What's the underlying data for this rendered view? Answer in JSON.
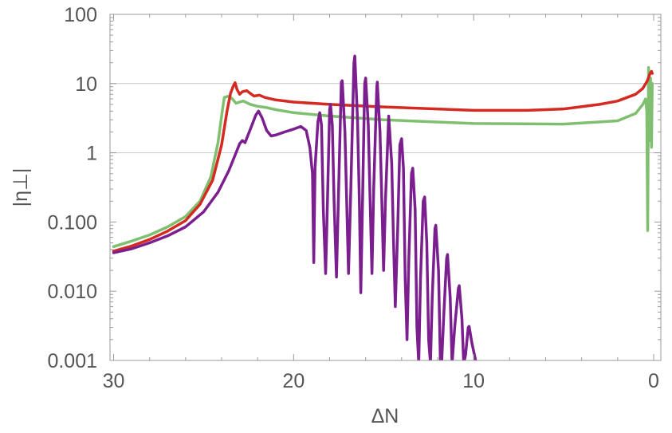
{
  "chart_data": {
    "type": "line",
    "xlabel": "ΔN",
    "ylabel": "|η⊥|",
    "xlim": [
      30.2,
      -0.4
    ],
    "ylim": [
      0.001,
      100
    ],
    "y_scale": "log",
    "x_axis_reversed": true,
    "x_ticks": [
      {
        "value": 30,
        "label": "30"
      },
      {
        "value": 20,
        "label": "20"
      },
      {
        "value": 10,
        "label": "10"
      },
      {
        "value": 0,
        "label": "0"
      }
    ],
    "y_ticks": [
      {
        "value": 100,
        "label": "100"
      },
      {
        "value": 10,
        "label": "10"
      },
      {
        "value": 1,
        "label": "1"
      },
      {
        "value": 0.1,
        "label": "0.100"
      },
      {
        "value": 0.01,
        "label": "0.010"
      },
      {
        "value": 0.001,
        "label": "0.001"
      }
    ],
    "gridlines_y": [
      10,
      1
    ],
    "legend": "none",
    "series": [
      {
        "color": "#7fbf6f",
        "points": [
          [
            30,
            0.044
          ],
          [
            29,
            0.053
          ],
          [
            28,
            0.065
          ],
          [
            27,
            0.085
          ],
          [
            26,
            0.12
          ],
          [
            25.2,
            0.2
          ],
          [
            24.6,
            0.45
          ],
          [
            24.2,
            1.4
          ],
          [
            23.95,
            4.2
          ],
          [
            23.85,
            6.3
          ],
          [
            23.6,
            6.6
          ],
          [
            23.4,
            6.0
          ],
          [
            23.2,
            5.2
          ],
          [
            23.0,
            5.4
          ],
          [
            22.8,
            5.6
          ],
          [
            22.4,
            5.0
          ],
          [
            22.0,
            4.7
          ],
          [
            21.5,
            4.5
          ],
          [
            21.0,
            4.2
          ],
          [
            20.0,
            3.8
          ],
          [
            18.0,
            3.4
          ],
          [
            15.0,
            3.0
          ],
          [
            10.0,
            2.65
          ],
          [
            5.0,
            2.6
          ],
          [
            2.0,
            2.9
          ],
          [
            1.0,
            3.7
          ],
          [
            0.6,
            5.0
          ],
          [
            0.45,
            6.0
          ],
          [
            0.38,
            4.0
          ],
          [
            0.33,
            0.075
          ],
          [
            0.28,
            17.0
          ],
          [
            0.22,
            1.5
          ],
          [
            0.17,
            12.0
          ],
          [
            0.12,
            1.2
          ],
          [
            0.08,
            10.0
          ]
        ]
      },
      {
        "color": "#d42a22",
        "points": [
          [
            30,
            0.038
          ],
          [
            29,
            0.045
          ],
          [
            28,
            0.056
          ],
          [
            27,
            0.074
          ],
          [
            26,
            0.105
          ],
          [
            25.2,
            0.18
          ],
          [
            24.5,
            0.4
          ],
          [
            24.0,
            1.3
          ],
          [
            23.7,
            4.0
          ],
          [
            23.5,
            7.3
          ],
          [
            23.35,
            9.2
          ],
          [
            23.25,
            10.3
          ],
          [
            23.15,
            8.3
          ],
          [
            23.0,
            7.0
          ],
          [
            22.85,
            7.6
          ],
          [
            22.6,
            7.9
          ],
          [
            22.4,
            7.2
          ],
          [
            22.2,
            6.6
          ],
          [
            21.9,
            6.8
          ],
          [
            21.6,
            6.3
          ],
          [
            21.0,
            5.8
          ],
          [
            20.0,
            5.4
          ],
          [
            18.0,
            5.0
          ],
          [
            15.0,
            4.6
          ],
          [
            10.0,
            4.1
          ],
          [
            7.0,
            4.1
          ],
          [
            5.0,
            4.3
          ],
          [
            3.0,
            5.0
          ],
          [
            2.0,
            5.6
          ],
          [
            1.0,
            7.0
          ],
          [
            0.6,
            8.5
          ],
          [
            0.35,
            11.0
          ],
          [
            0.2,
            14.0
          ],
          [
            0.12,
            15.0
          ],
          [
            0.08,
            14.0
          ]
        ]
      },
      {
        "color": "#7b1f8f",
        "points": [
          [
            30,
            0.036
          ],
          [
            29,
            0.041
          ],
          [
            28,
            0.05
          ],
          [
            27,
            0.063
          ],
          [
            26,
            0.085
          ],
          [
            25,
            0.14
          ],
          [
            24.2,
            0.27
          ],
          [
            23.6,
            0.55
          ],
          [
            23.2,
            1.0
          ],
          [
            23.0,
            1.35
          ],
          [
            22.85,
            1.5
          ],
          [
            22.7,
            1.4
          ],
          [
            22.4,
            2.2
          ],
          [
            22.1,
            3.5
          ],
          [
            21.95,
            4.0
          ],
          [
            21.75,
            3.2
          ],
          [
            21.5,
            2.1
          ],
          [
            21.25,
            1.75
          ],
          [
            21.0,
            1.8
          ],
          [
            20.5,
            2.0
          ],
          [
            20.0,
            2.2
          ],
          [
            19.6,
            2.4
          ],
          [
            19.3,
            2.1
          ],
          [
            19.1,
            1.2
          ],
          [
            18.95,
            0.5
          ],
          [
            18.88,
            0.026
          ],
          [
            18.81,
            0.6
          ],
          [
            18.65,
            2.8
          ],
          [
            18.55,
            3.8
          ],
          [
            18.45,
            2.5
          ],
          [
            18.35,
            0.15
          ],
          [
            18.22,
            0.018
          ],
          [
            18.12,
            0.2
          ],
          [
            18.0,
            4.2
          ],
          [
            17.95,
            5.0
          ],
          [
            17.85,
            2.5
          ],
          [
            17.75,
            0.2
          ],
          [
            17.62,
            0.016
          ],
          [
            17.5,
            0.3
          ],
          [
            17.35,
            10.5
          ],
          [
            17.3,
            11.0
          ],
          [
            17.15,
            2.0
          ],
          [
            17.05,
            0.2
          ],
          [
            16.95,
            0.018
          ],
          [
            16.82,
            0.3
          ],
          [
            16.65,
            20.0
          ],
          [
            16.6,
            25.0
          ],
          [
            16.45,
            3.0
          ],
          [
            16.35,
            0.2
          ],
          [
            16.27,
            0.0095
          ],
          [
            16.17,
            0.2
          ],
          [
            16.05,
            10.0
          ],
          [
            16.0,
            12.0
          ],
          [
            15.85,
            2.5
          ],
          [
            15.75,
            0.2
          ],
          [
            15.65,
            0.018
          ],
          [
            15.55,
            0.3
          ],
          [
            15.38,
            9.0
          ],
          [
            15.35,
            10.5
          ],
          [
            15.2,
            2.0
          ],
          [
            15.1,
            0.2
          ],
          [
            15.0,
            0.02
          ],
          [
            14.9,
            0.2
          ],
          [
            14.72,
            3.4
          ],
          [
            14.55,
            0.7
          ],
          [
            14.45,
            0.05
          ],
          [
            14.35,
            0.006
          ],
          [
            14.22,
            0.08
          ],
          [
            14.1,
            1.3
          ],
          [
            14.0,
            1.6
          ],
          [
            13.9,
            0.6
          ],
          [
            13.8,
            0.015
          ],
          [
            13.7,
            0.002
          ],
          [
            13.6,
            0.03
          ],
          [
            13.45,
            0.5
          ],
          [
            13.38,
            0.6
          ],
          [
            13.25,
            0.15
          ],
          [
            13.15,
            0.003
          ],
          [
            13.05,
            0.0009
          ],
          [
            12.95,
            0.015
          ],
          [
            12.8,
            0.2
          ],
          [
            12.72,
            0.23
          ],
          [
            12.6,
            0.05
          ],
          [
            12.5,
            0.002
          ],
          [
            12.4,
            0.0009
          ],
          [
            12.3,
            0.008
          ],
          [
            12.15,
            0.08
          ],
          [
            12.1,
            0.09
          ],
          [
            11.95,
            0.02
          ],
          [
            11.85,
            0.001
          ],
          [
            11.78,
            0.0009
          ],
          [
            11.65,
            0.005
          ],
          [
            11.5,
            0.03
          ],
          [
            11.45,
            0.034
          ],
          [
            11.3,
            0.008
          ],
          [
            11.2,
            0.0009
          ],
          [
            11.05,
            0.003
          ],
          [
            10.85,
            0.011
          ],
          [
            10.8,
            0.012
          ],
          [
            10.65,
            0.004
          ],
          [
            10.55,
            0.0009
          ],
          [
            10.45,
            0.0012
          ],
          [
            10.3,
            0.003
          ],
          [
            10.25,
            0.0031
          ],
          [
            10.1,
            0.0018
          ],
          [
            9.85,
            0.0009
          ]
        ]
      }
    ]
  }
}
